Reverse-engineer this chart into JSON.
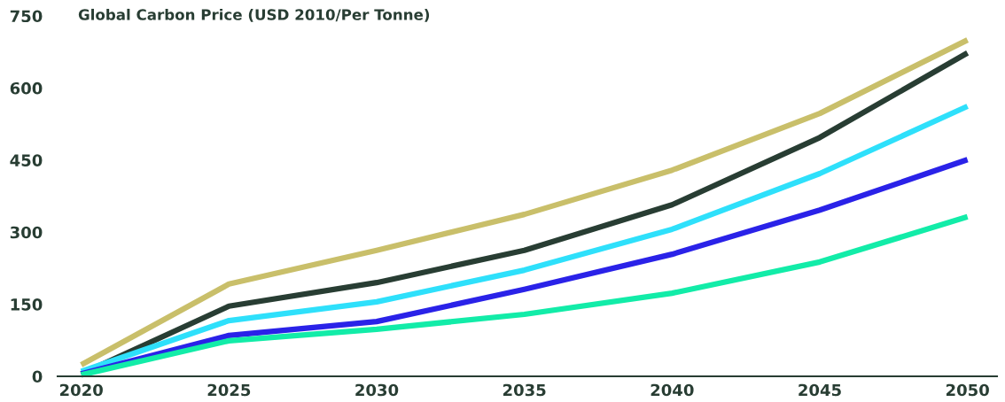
{
  "chart_data": {
    "type": "line",
    "title": "Global Carbon Price (USD 2010/Per Tonne)",
    "x": [
      2020,
      2025,
      2030,
      2035,
      2040,
      2045,
      2050
    ],
    "series": [
      {
        "color": "#c9bf6a",
        "values": [
          24,
          192,
          262,
          337,
          429,
          547,
          700
        ]
      },
      {
        "color": "#283d33",
        "values": [
          5,
          146,
          195,
          262,
          357,
          497,
          673
        ]
      },
      {
        "color": "#2ee0fb",
        "values": [
          10,
          116,
          155,
          221,
          306,
          422,
          562
        ]
      },
      {
        "color": "#2a22e8",
        "values": [
          5,
          85,
          114,
          181,
          254,
          346,
          451
        ]
      },
      {
        "color": "#12eca8",
        "values": [
          3,
          74,
          98,
          129,
          173,
          238,
          332
        ]
      }
    ],
    "xlim": [
      2019.2,
      2051
    ],
    "xticks": [
      2020,
      2025,
      2030,
      2035,
      2040,
      2045,
      2050
    ],
    "ylim": [
      0,
      750
    ],
    "yticks": [
      0,
      150,
      300,
      450,
      600,
      750
    ],
    "grid": false,
    "marker": "none",
    "line_style": "solid"
  }
}
